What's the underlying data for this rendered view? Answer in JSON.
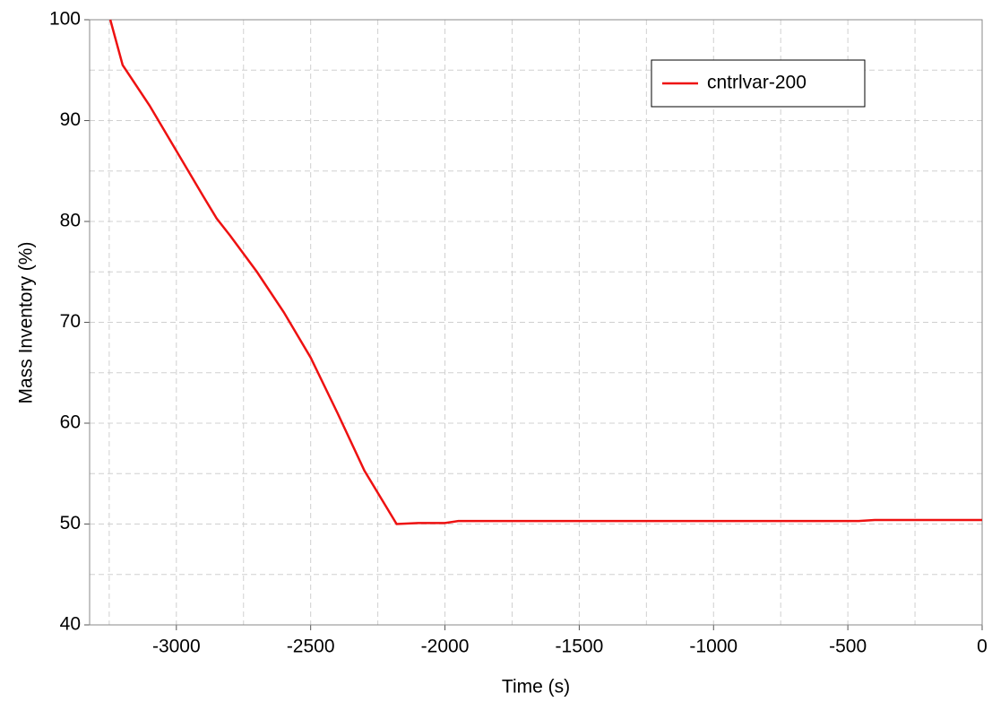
{
  "chart_data": {
    "type": "line",
    "x_label": "Time (s)",
    "y_label": "Mass Inventory (%)",
    "x": [
      -3246,
      -3200,
      -3100,
      -3000,
      -2900,
      -2850,
      -2800,
      -2700,
      -2600,
      -2500,
      -2400,
      -2300,
      -2180,
      -2100,
      -2000,
      -1950,
      -1000,
      -460,
      -400,
      -270,
      0
    ],
    "series": [
      {
        "name": "cntrlvar-200",
        "color": "#ee1111",
        "values": [
          100,
          95.5,
          91.5,
          87,
          82.5,
          80.3,
          78.6,
          75,
          71,
          66.5,
          61,
          55.3,
          50,
          50.1,
          50.1,
          50.3,
          50.3,
          50.3,
          50.4,
          50.4,
          50.4
        ]
      }
    ],
    "xlim": [
      -3323,
      0
    ],
    "ylim": [
      40,
      100
    ],
    "xticks": [
      -3000,
      -2500,
      -2000,
      -1500,
      -1000,
      -500,
      0
    ],
    "yticks": [
      40,
      50,
      60,
      70,
      80,
      90,
      100
    ],
    "x_minor_grid": [
      -3250,
      -2750,
      -2250,
      -1750,
      -1250,
      -750,
      -250
    ],
    "y_minor_grid": [
      45,
      55,
      65,
      75,
      85,
      95
    ],
    "grid": true,
    "legend": "upper right"
  }
}
